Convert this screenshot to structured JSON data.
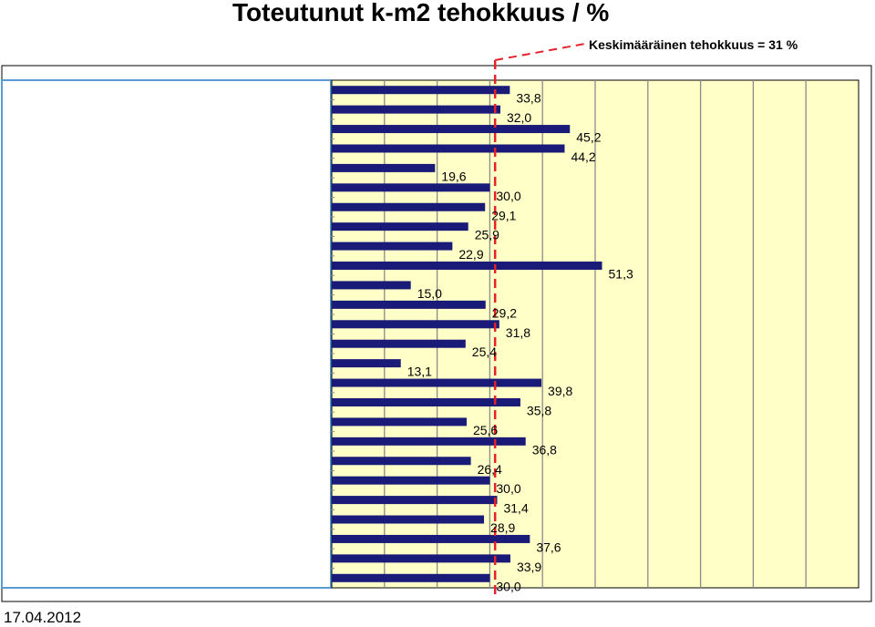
{
  "title": "Toteutunut k-m2 tehokkuus / %",
  "average_label": "Keskimääräinen tehokkuus = 31 %",
  "date": "17.04.2012",
  "colors": {
    "bar": "#1a1a78",
    "plot_background": "#ffffc8",
    "average_line": "#e8202a",
    "gridline": "#8a8a8a"
  },
  "chart_data": {
    "type": "bar",
    "orientation": "horizontal",
    "title": "Toteutunut k-m2 tehokkuus / %",
    "values": [
      33.8,
      32.0,
      45.2,
      44.2,
      19.6,
      30.0,
      29.1,
      25.9,
      22.9,
      51.3,
      15.0,
      29.2,
      31.8,
      25.4,
      13.1,
      39.8,
      35.8,
      25.6,
      36.8,
      26.4,
      30.0,
      31.4,
      28.9,
      37.6,
      33.9,
      30.0
    ],
    "labels": [
      "33,8",
      "32,0",
      "45,2",
      "44,2",
      "19,6",
      "30,0",
      "29,1",
      "25,9",
      "22,9",
      "51,3",
      "15,0",
      "29,2",
      "31,8",
      "25,4",
      "13,1",
      "39,8",
      "35,8",
      "25,6",
      "36,8",
      "26,4",
      "30,0",
      "31,4",
      "28,9",
      "37,6",
      "33,9",
      "30,0"
    ],
    "average": 31,
    "xlim": [
      0,
      100
    ],
    "grid": true,
    "category_labels_visible": false
  }
}
